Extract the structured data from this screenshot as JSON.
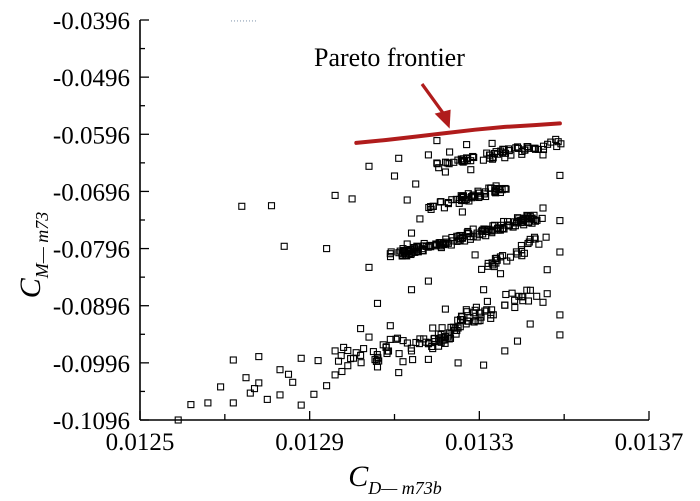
{
  "chart_data": {
    "type": "scatter",
    "title": "",
    "xlabel": {
      "main": "C",
      "sub": "D— m73b"
    },
    "ylabel": {
      "main": "C",
      "sub": "M— m73"
    },
    "xlim": [
      0.0125,
      0.0137
    ],
    "ylim": [
      -0.1096,
      -0.0396
    ],
    "xticks": [
      0.0125,
      0.0127,
      0.0129,
      0.0131,
      0.0133,
      0.0135,
      0.0137
    ],
    "xtick_labels": [
      "0.0125",
      "",
      "0.0129",
      "",
      "0.0133",
      "",
      "0.0137"
    ],
    "yticks": [
      -0.0396,
      -0.0446,
      -0.0496,
      -0.0546,
      -0.0596,
      -0.0646,
      -0.0696,
      -0.0746,
      -0.0796,
      -0.0846,
      -0.0896,
      -0.0946,
      -0.0996,
      -0.1046,
      -0.1096
    ],
    "ytick_labels": [
      "-0.0396",
      "",
      "-0.0496",
      "",
      "-0.0596",
      "",
      "-0.0696",
      "",
      "-0.0796",
      "",
      "-0.0896",
      "",
      "-0.0996",
      "",
      "-0.1096"
    ],
    "grid": false,
    "marker": "open-square",
    "colors": {
      "points": "#000000",
      "frontier": "#b01c1c",
      "axes": "#000000"
    },
    "annotation": {
      "text": "Pareto frontier",
      "target": [
        0.01323,
        -0.0586
      ]
    },
    "frontier": {
      "x": [
        0.01301,
        0.01308,
        0.01315,
        0.01322,
        0.01329,
        0.01336,
        0.01343,
        0.01349
      ],
      "y": [
        -0.0611,
        -0.0606,
        -0.06,
        -0.0594,
        -0.0588,
        -0.0583,
        -0.058,
        -0.0577
      ]
    },
    "points": [
      [
        0.01259,
        -0.1096
      ],
      [
        0.01266,
        -0.1066
      ],
      [
        0.01272,
        -0.1066
      ],
      [
        0.01276,
        -0.1049
      ],
      [
        0.01278,
        -0.1031
      ],
      [
        0.01275,
        -0.1022
      ],
      [
        0.0128,
        -0.106
      ],
      [
        0.01272,
        -0.0991
      ],
      [
        0.01278,
        -0.0985
      ],
      [
        0.01283,
        -0.1008
      ],
      [
        0.01286,
        -0.103
      ],
      [
        0.01283,
        -0.1052
      ],
      [
        0.01288,
        -0.107
      ],
      [
        0.01291,
        -0.1051
      ],
      [
        0.01294,
        -0.1036
      ],
      [
        0.01296,
        -0.1017
      ],
      [
        0.01299,
        -0.1001
      ],
      [
        0.01302,
        -0.0983
      ],
      [
        0.01298,
        -0.0969
      ],
      [
        0.01304,
        -0.0951
      ],
      [
        0.01308,
        -0.0969
      ],
      [
        0.01306,
        -0.1003
      ],
      [
        0.01312,
        -0.0994
      ],
      [
        0.01314,
        -0.0975
      ],
      [
        0.01309,
        -0.0931
      ],
      [
        0.01316,
        -0.0954
      ],
      [
        0.01319,
        -0.0971
      ],
      [
        0.01311,
        -0.1013
      ],
      [
        0.01274,
        -0.0722
      ],
      [
        0.01281,
        -0.0721
      ],
      [
        0.01296,
        -0.0703
      ],
      [
        0.013,
        -0.0709
      ],
      [
        0.01284,
        -0.0792
      ],
      [
        0.01294,
        -0.0796
      ],
      [
        0.01304,
        -0.0829
      ],
      [
        0.01309,
        -0.0805
      ],
      [
        0.01314,
        -0.0868
      ],
      [
        0.01306,
        -0.0892
      ],
      [
        0.01318,
        -0.0853
      ],
      [
        0.01313,
        -0.0788
      ],
      [
        0.01314,
        -0.0769
      ],
      [
        0.01316,
        -0.0744
      ],
      [
        0.01313,
        -0.0711
      ],
      [
        0.01304,
        -0.0652
      ],
      [
        0.01311,
        -0.0638
      ],
      [
        0.01318,
        -0.0632
      ],
      [
        0.01323,
        -0.0627
      ],
      [
        0.01322,
        -0.0662
      ],
      [
        0.01328,
        -0.0658
      ],
      [
        0.0133,
        -0.0699
      ],
      [
        0.01326,
        -0.0732
      ],
      [
        0.01336,
        -0.0637
      ],
      [
        0.0134,
        -0.0631
      ],
      [
        0.01345,
        -0.0632
      ],
      [
        0.01349,
        -0.0668
      ],
      [
        0.01349,
        -0.0747
      ],
      [
        0.01349,
        -0.0802
      ],
      [
        0.01346,
        -0.0833
      ],
      [
        0.01346,
        -0.0875
      ],
      [
        0.01349,
        -0.0912
      ],
      [
        0.01349,
        -0.0947
      ],
      [
        0.01342,
        -0.0928
      ],
      [
        0.01336,
        -0.0975
      ],
      [
        0.0133,
        -0.0909
      ],
      [
        0.01325,
        -0.0935
      ],
      [
        0.01321,
        -0.096
      ],
      [
        0.01325,
        -0.0996
      ],
      [
        0.01331,
        -0.1
      ],
      [
        0.01318,
        -0.099
      ],
      [
        0.01339,
        -0.0958
      ],
      [
        0.01345,
        -0.089
      ],
      [
        0.01336,
        -0.0895
      ],
      [
        0.01331,
        -0.0868
      ],
      [
        0.01322,
        -0.0902
      ],
      [
        0.01319,
        -0.0935
      ],
      [
        0.01309,
        -0.0955
      ],
      [
        0.01302,
        -0.0936
      ],
      [
        0.01296,
        -0.0975
      ],
      [
        0.01292,
        -0.0992
      ],
      [
        0.01288,
        -0.0988
      ],
      [
        0.01285,
        -0.1016
      ],
      [
        0.01269,
        -0.1038
      ],
      [
        0.01262,
        -0.1069
      ],
      [
        0.01277,
        -0.1041
      ],
      [
        0.0134,
        -0.088
      ],
      [
        0.01335,
        -0.084
      ],
      [
        0.01333,
        -0.0821
      ],
      [
        0.01329,
        -0.0807
      ],
      [
        0.01342,
        -0.078
      ],
      [
        0.01339,
        -0.0742
      ],
      [
        0.01345,
        -0.0725
      ],
      [
        0.0131,
        -0.0669
      ],
      [
        0.01315,
        -0.0683
      ],
      [
        0.01327,
        -0.0614
      ],
      [
        0.01333,
        -0.0612
      ],
      [
        0.01339,
        -0.0618
      ],
      [
        0.0132,
        -0.0607
      ],
      [
        0.01348,
        -0.0605
      ]
    ],
    "clusters": [
      {
        "x": [
          0.0132,
          0.01348
        ],
        "y": [
          -0.065,
          -0.0612
        ],
        "n": 60,
        "spread": 0.0013
      },
      {
        "x": [
          0.01318,
          0.01336
        ],
        "y": [
          -0.0725,
          -0.0688
        ],
        "n": 55,
        "spread": 0.0009
      },
      {
        "x": [
          0.0131,
          0.01343
        ],
        "y": [
          -0.0808,
          -0.0742
        ],
        "n": 140,
        "spread": 0.0011
      },
      {
        "x": [
          0.0133,
          0.01346
        ],
        "y": [
          -0.083,
          -0.0775
        ],
        "n": 25,
        "spread": 0.0016
      },
      {
        "x": [
          0.01295,
          0.01326
        ],
        "y": [
          -0.1,
          -0.0935
        ],
        "n": 45,
        "spread": 0.003
      },
      {
        "x": [
          0.01325,
          0.01344
        ],
        "y": [
          -0.092,
          -0.087
        ],
        "n": 30,
        "spread": 0.003
      },
      {
        "x": [
          0.01315,
          0.0133
        ],
        "y": [
          -0.099,
          -0.091
        ],
        "n": 25,
        "spread": 0.0025
      }
    ]
  },
  "caption_mark": "·········"
}
